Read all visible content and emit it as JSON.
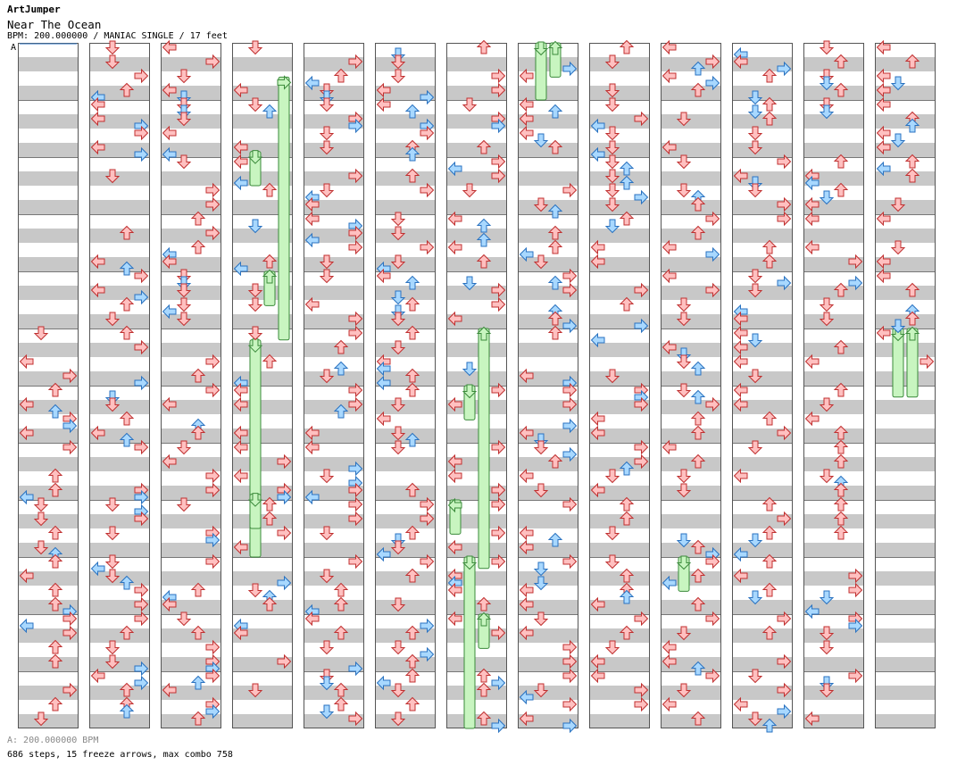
{
  "header": {
    "artist": "ArtJumper",
    "title": "Near The Ocean",
    "info": "BPM: 200.000000 / MANIAC SINGLE / 17 feet",
    "marker": "A"
  },
  "footer": {
    "bpm": "A: 200.000000 BPM",
    "stats": "686 steps, 15 freeze arrows, max combo 758"
  },
  "colors": {
    "stripe": "#c8c8c8",
    "normal_fill": "#ffc0c0",
    "normal_stroke": "#c03030",
    "eighth_fill": "#a8d8ff",
    "eighth_stroke": "#2a72c0",
    "freeze_fill": "#c8f5c0",
    "freeze_stroke": "#3a8a3a",
    "freeze_head_fill": "#f4c0ff",
    "freeze_head_stroke": "#b040c0",
    "measure_line": "#777777"
  },
  "chart": {
    "columns": 13,
    "measures_per_column": 12,
    "lanes": [
      "left",
      "down",
      "up",
      "right"
    ],
    "freezes": [
      {
        "col": 3,
        "lane": 3,
        "start_measure": 0.6,
        "end_measure": 5.2
      },
      {
        "col": 3,
        "lane": 1,
        "start_measure": 5.2,
        "end_measure": 9.0
      },
      {
        "col": 3,
        "lane": 1,
        "start_measure": 1.9,
        "end_measure": 2.5
      },
      {
        "col": 3,
        "lane": 2,
        "start_measure": 4.0,
        "end_measure": 4.6
      },
      {
        "col": 3,
        "lane": 1,
        "start_measure": 7.9,
        "end_measure": 8.5
      },
      {
        "col": 6,
        "lane": 2,
        "start_measure": 5.0,
        "end_measure": 9.2
      },
      {
        "col": 6,
        "lane": 1,
        "start_measure": 9.0,
        "end_measure": 12.0
      },
      {
        "col": 6,
        "lane": 1,
        "start_measure": 6.0,
        "end_measure": 6.6
      },
      {
        "col": 6,
        "lane": 0,
        "start_measure": 8.0,
        "end_measure": 8.6
      },
      {
        "col": 6,
        "lane": 2,
        "start_measure": 10.0,
        "end_measure": 10.6
      },
      {
        "col": 7,
        "lane": 1,
        "start_measure": 0.0,
        "end_measure": 1.0
      },
      {
        "col": 7,
        "lane": 2,
        "start_measure": 0.0,
        "end_measure": 0.6
      },
      {
        "col": 9,
        "lane": 1,
        "start_measure": 9.0,
        "end_measure": 9.6
      },
      {
        "col": 12,
        "lane": 1,
        "start_measure": 5.0,
        "end_measure": 6.2
      },
      {
        "col": 12,
        "lane": 2,
        "start_measure": 5.0,
        "end_measure": 6.2
      }
    ]
  }
}
